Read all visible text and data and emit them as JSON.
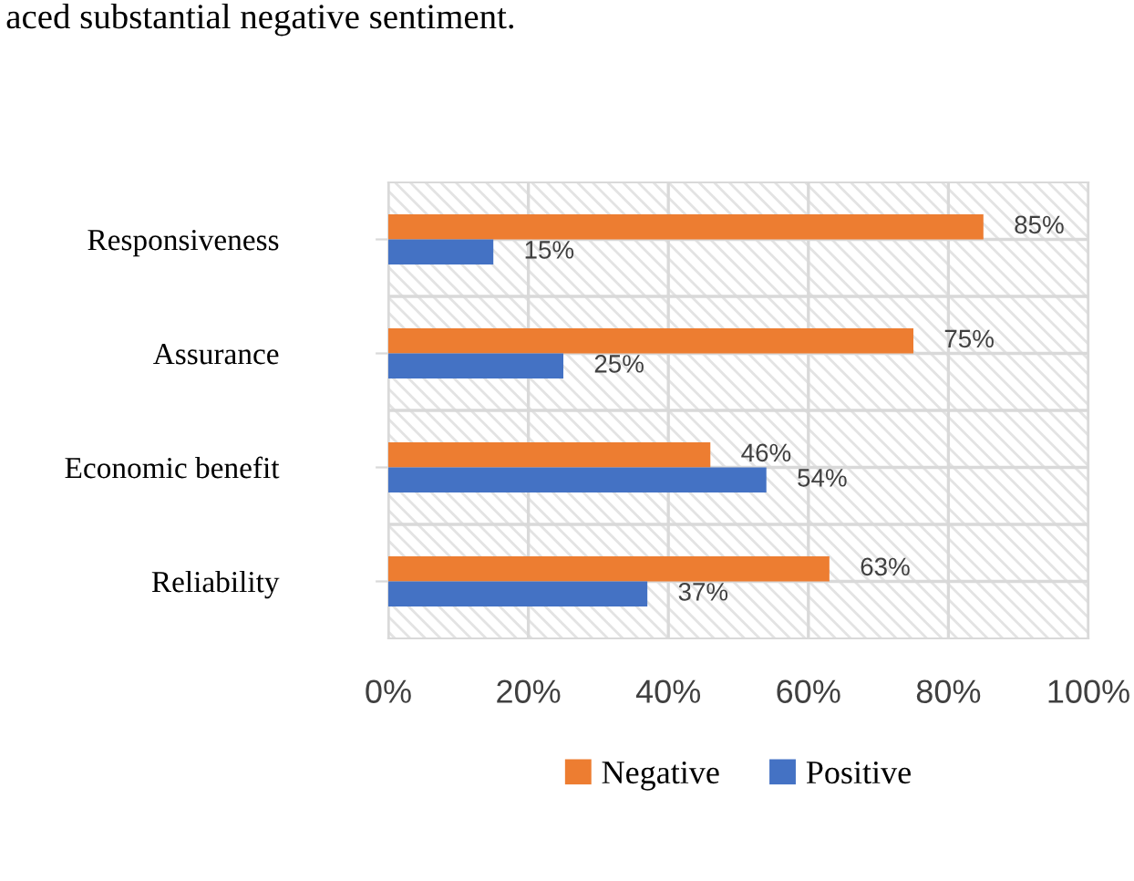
{
  "chart_data": {
    "type": "bar",
    "orientation": "horizontal",
    "categories": [
      "Responsiveness",
      "Assurance",
      "Economic benefit",
      "Reliability"
    ],
    "series": [
      {
        "name": "Negative",
        "color": "#ed7d31",
        "values": [
          85,
          75,
          46,
          63
        ],
        "value_labels": [
          "85%",
          "75%",
          "46%",
          "63%"
        ]
      },
      {
        "name": "Positive",
        "color": "#4472c4",
        "values": [
          15,
          25,
          54,
          37
        ],
        "value_labels": [
          "15%",
          "25%",
          "54%",
          "37%"
        ]
      }
    ],
    "xlim": [
      0,
      100
    ],
    "xticks": [
      {
        "value": 0,
        "label": "0%"
      },
      {
        "value": 20,
        "label": "20%"
      },
      {
        "value": 40,
        "label": "40%"
      },
      {
        "value": 60,
        "label": "60%"
      },
      {
        "value": 80,
        "label": "80%"
      },
      {
        "value": 100,
        "label": "100%"
      }
    ],
    "grid": true,
    "legend": "bottom",
    "annotations": [
      "aced substantial negative sentiment."
    ]
  }
}
